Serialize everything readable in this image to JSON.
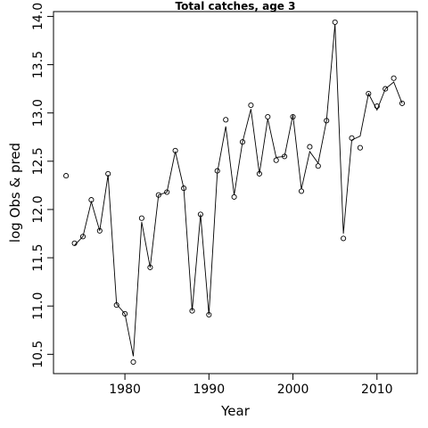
{
  "chart_data": {
    "type": "scatter",
    "title": "Total catches, age 3",
    "xlabel": "Year",
    "ylabel": "log Obs & pred",
    "xlim": [
      1971.5,
      2014.8
    ],
    "ylim": [
      10.3,
      14.05
    ],
    "x_ticks": [
      1980,
      1990,
      2000,
      2010
    ],
    "y_ticks": [
      10.5,
      11.0,
      11.5,
      12.0,
      12.5,
      13.0,
      13.5,
      14.0
    ],
    "x_tick_labels": [
      "1980",
      "1990",
      "2000",
      "2010"
    ],
    "y_tick_labels": [
      "10.5",
      "11.0",
      "11.5",
      "12.0",
      "12.5",
      "13.0",
      "13.5",
      "14.0"
    ],
    "grid": false,
    "series": [
      {
        "style": "points",
        "marker": "open-circle",
        "x": [
          1973,
          1974,
          1975,
          1976,
          1977,
          1978,
          1979,
          1980,
          1981,
          1982,
          1983,
          1984,
          1985,
          1986,
          1987,
          1988,
          1989,
          1990,
          1991,
          1992,
          1993,
          1994,
          1995,
          1996,
          1997,
          1998,
          1999,
          2000,
          2001,
          2002,
          2003,
          2004,
          2005,
          2006,
          2007,
          2008,
          2009,
          2010,
          2011,
          2012,
          2013
        ],
        "values": [
          12.35,
          11.65,
          11.72,
          12.1,
          11.78,
          12.37,
          11.01,
          10.92,
          10.42,
          11.91,
          11.4,
          12.15,
          12.18,
          12.61,
          12.22,
          10.95,
          11.95,
          10.91,
          12.4,
          12.93,
          12.13,
          12.7,
          13.08,
          12.37,
          12.96,
          12.51,
          12.55,
          12.96,
          12.19,
          12.65,
          12.45,
          12.92,
          13.94,
          11.7,
          12.74,
          12.64,
          13.2,
          13.07,
          13.25,
          13.36,
          13.1
        ]
      },
      {
        "style": "line",
        "x": [
          1974,
          1975,
          1976,
          1977,
          1978,
          1979,
          1980,
          1981,
          1982,
          1983,
          1984,
          1985,
          1986,
          1987,
          1988,
          1989,
          1990,
          1991,
          1992,
          1993,
          1994,
          1995,
          1996,
          1997,
          1998,
          1999,
          2000,
          2001,
          2002,
          2003,
          2004,
          2005,
          2006,
          2007,
          2008,
          2009,
          2010,
          2011,
          2012,
          2013
        ],
        "values": [
          11.63,
          11.72,
          12.08,
          11.78,
          12.36,
          11.02,
          10.92,
          10.48,
          11.87,
          11.4,
          12.15,
          12.18,
          12.6,
          12.22,
          10.95,
          11.95,
          10.91,
          12.38,
          12.86,
          12.15,
          12.7,
          13.04,
          12.37,
          12.94,
          12.54,
          12.55,
          12.98,
          12.21,
          12.6,
          12.48,
          12.92,
          13.92,
          11.75,
          12.72,
          12.76,
          13.2,
          13.03,
          13.25,
          13.32,
          13.1
        ]
      }
    ]
  }
}
